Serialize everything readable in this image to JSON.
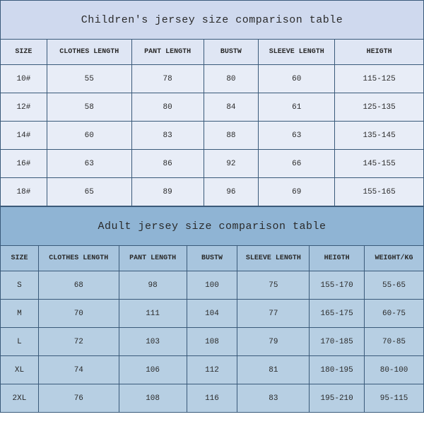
{
  "children_table": {
    "type": "table",
    "title": "Children's jersey size comparison table",
    "title_bg": "#cfd9ee",
    "header_bg": "#dfe6f4",
    "row_bg": "#e8edf7",
    "border_color": "#3a5a7a",
    "title_fontsize": 15,
    "header_fontsize": 10,
    "cell_fontsize": 11,
    "columns": [
      "SIZE",
      "CLOTHES LENGTH",
      "PANT LENGTH",
      "BUSTW",
      "SLEEVE LENGTH",
      "HEIGTH"
    ],
    "col_widths_pct": [
      11,
      20,
      17,
      13,
      18,
      21
    ],
    "rows": [
      [
        "10#",
        "55",
        "78",
        "80",
        "60",
        "115-125"
      ],
      [
        "12#",
        "58",
        "80",
        "84",
        "61",
        "125-135"
      ],
      [
        "14#",
        "60",
        "83",
        "88",
        "63",
        "135-145"
      ],
      [
        "16#",
        "63",
        "86",
        "92",
        "66",
        "145-155"
      ],
      [
        "18#",
        "65",
        "89",
        "96",
        "69",
        "155-165"
      ]
    ]
  },
  "adult_table": {
    "type": "table",
    "title": "Adult jersey size comparison table",
    "title_bg": "#8fb4d4",
    "header_bg": "#a8c5de",
    "row_bg": "#b7cfe3",
    "border_color": "#3a5a7a",
    "title_fontsize": 15,
    "header_fontsize": 10,
    "cell_fontsize": 11,
    "columns": [
      "SIZE",
      "CLOTHES LENGTH",
      "PANT LENGTH",
      "BUSTW",
      "SLEEVE LENGTH",
      "HEIGTH",
      "WEIGHT/KG"
    ],
    "col_widths_pct": [
      9,
      19,
      16,
      12,
      17,
      13,
      14
    ],
    "rows": [
      [
        "S",
        "68",
        "98",
        "100",
        "75",
        "155-170",
        "55-65"
      ],
      [
        "M",
        "70",
        "111",
        "104",
        "77",
        "165-175",
        "60-75"
      ],
      [
        "L",
        "72",
        "103",
        "108",
        "79",
        "170-185",
        "70-85"
      ],
      [
        "XL",
        "74",
        "106",
        "112",
        "81",
        "180-195",
        "80-100"
      ],
      [
        "2XL",
        "76",
        "108",
        "116",
        "83",
        "195-210",
        "95-115"
      ]
    ]
  }
}
